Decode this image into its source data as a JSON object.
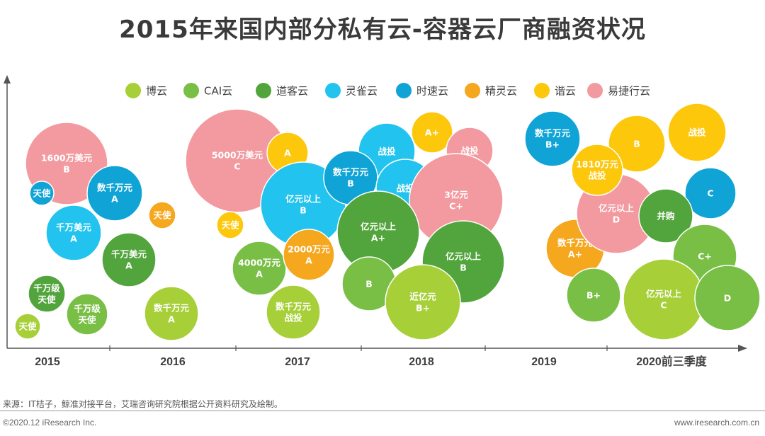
{
  "chart_data": {
    "type": "bubble",
    "title": "2015年来国内部分私有云-容器云厂商融资状况",
    "categories": [
      "2015",
      "2016",
      "2017",
      "2018",
      "2019",
      "2020前三季度"
    ],
    "legend": [
      {
        "name": "博云",
        "color": "#a6cf38"
      },
      {
        "name": "CAI云",
        "color": "#79bf46"
      },
      {
        "name": "道客云",
        "color": "#52a43c"
      },
      {
        "name": "灵雀云",
        "color": "#22c3ee"
      },
      {
        "name": "时速云",
        "color": "#0fa3d6"
      },
      {
        "name": "精灵云",
        "color": "#f5a71e"
      },
      {
        "name": "谐云",
        "color": "#fdc70c"
      },
      {
        "name": "易捷行云",
        "color": "#f29aa0"
      }
    ],
    "bubbles": [
      {
        "company": "易捷行云",
        "year": "2015",
        "amount": "1600万美元",
        "round": "B"
      },
      {
        "company": "时速云",
        "year": "2015",
        "amount": "天使",
        "round": ""
      },
      {
        "company": "时速云",
        "year": "2015",
        "amount": "数千万元",
        "round": "A"
      },
      {
        "company": "灵雀云",
        "year": "2015",
        "amount": "千万美元",
        "round": "A"
      },
      {
        "company": "道客云",
        "year": "2015",
        "amount": "千万美元",
        "round": "A"
      },
      {
        "company": "道客云",
        "year": "2015",
        "amount": "千万级",
        "round": "天使"
      },
      {
        "company": "CAI云",
        "year": "2015",
        "amount": "千万级",
        "round": "天使"
      },
      {
        "company": "博云",
        "year": "2015",
        "amount": "天使",
        "round": ""
      },
      {
        "company": "精灵云",
        "year": "2016",
        "amount": "天使",
        "round": ""
      },
      {
        "company": "博云",
        "year": "2016",
        "amount": "数千万元",
        "round": "A"
      },
      {
        "company": "易捷行云",
        "year": "2017",
        "amount": "5000万美元",
        "round": "C"
      },
      {
        "company": "谐云",
        "year": "2017",
        "amount": "A",
        "round": ""
      },
      {
        "company": "谐云",
        "year": "2017",
        "amount": "天使",
        "round": ""
      },
      {
        "company": "灵雀云",
        "year": "2017",
        "amount": "亿元以上",
        "round": "B"
      },
      {
        "company": "CAI云",
        "year": "2017",
        "amount": "4000万元",
        "round": "A"
      },
      {
        "company": "精灵云",
        "year": "2017",
        "amount": "2000万元",
        "round": "A"
      },
      {
        "company": "博云",
        "year": "2017",
        "amount": "数千万元",
        "round": "战投"
      },
      {
        "company": "灵雀云",
        "year": "2018",
        "amount": "战投",
        "round": ""
      },
      {
        "company": "谐云",
        "year": "2018",
        "amount": "A+",
        "round": ""
      },
      {
        "company": "易捷行云",
        "year": "2018",
        "amount": "战投",
        "round": ""
      },
      {
        "company": "时速云",
        "year": "2018",
        "amount": "数千万元",
        "round": "B"
      },
      {
        "company": "灵雀云",
        "year": "2018",
        "amount": "战投",
        "round": ""
      },
      {
        "company": "易捷行云",
        "year": "2018",
        "amount": "3亿元",
        "round": "C+"
      },
      {
        "company": "道客云",
        "year": "2018",
        "amount": "亿元以上",
        "round": "A+"
      },
      {
        "company": "道客云",
        "year": "2018",
        "amount": "亿元以上",
        "round": "B"
      },
      {
        "company": "CAI云",
        "year": "2018",
        "amount": "B",
        "round": ""
      },
      {
        "company": "博云",
        "year": "2018",
        "amount": "近亿元",
        "round": "B+"
      },
      {
        "company": "时速云",
        "year": "2019",
        "amount": "数千万元",
        "round": "B+"
      },
      {
        "company": "精灵云",
        "year": "2019",
        "amount": "数千万元",
        "round": "A+"
      },
      {
        "company": "CAI云",
        "year": "2019",
        "amount": "B+",
        "round": ""
      },
      {
        "company": "谐云",
        "year": "2020前三季度",
        "amount": "B",
        "round": ""
      },
      {
        "company": "谐云",
        "year": "2020前三季度",
        "amount": "战投",
        "round": ""
      },
      {
        "company": "易捷行云",
        "year": "2020前三季度",
        "amount": "亿元以上",
        "round": "D"
      },
      {
        "company": "谐云",
        "year": "2020前三季度",
        "amount": "1810万元",
        "round": "战投"
      },
      {
        "company": "时速云",
        "year": "2020前三季度",
        "amount": "C",
        "round": ""
      },
      {
        "company": "道客云",
        "year": "2020前三季度",
        "amount": "并购",
        "round": ""
      },
      {
        "company": "CAI云",
        "year": "2020前三季度",
        "amount": "C+",
        "round": ""
      },
      {
        "company": "博云",
        "year": "2020前三季度",
        "amount": "亿元以上",
        "round": "C"
      },
      {
        "company": "CAI云",
        "year": "2020前三季度",
        "amount": "D",
        "round": ""
      }
    ]
  },
  "footer": {
    "source": "来源：IT桔子，鲸准对接平台，艾瑞咨询研究院根据公开资料研究及绘制。",
    "copyright": "©2020.12 iResearch Inc.",
    "website": "www.iresearch.com.cn"
  }
}
